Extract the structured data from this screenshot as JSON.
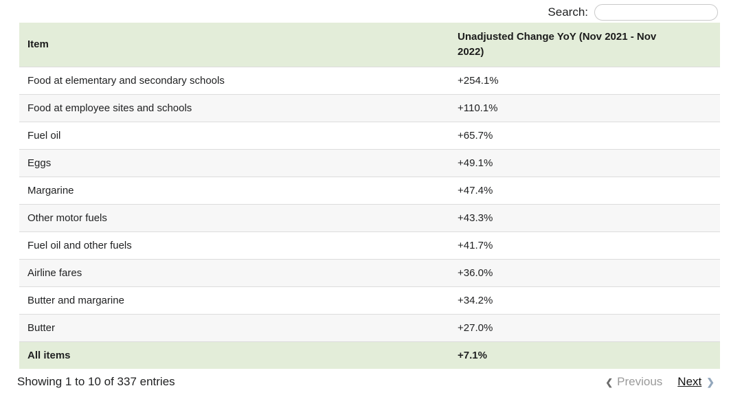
{
  "search": {
    "label": "Search:",
    "value": "",
    "placeholder": ""
  },
  "table": {
    "columns": [
      "Item",
      "Unadjusted Change YoY (Nov 2021 - Nov 2022)"
    ],
    "rows": [
      {
        "item": "Food at elementary and secondary schools",
        "change": "+254.1%"
      },
      {
        "item": "Food at employee sites and schools",
        "change": "+110.1%"
      },
      {
        "item": "Fuel oil",
        "change": "+65.7%"
      },
      {
        "item": "Eggs",
        "change": "+49.1%"
      },
      {
        "item": "Margarine",
        "change": "+47.4%"
      },
      {
        "item": "Other motor fuels",
        "change": "+43.3%"
      },
      {
        "item": "Fuel oil and other fuels",
        "change": "+41.7%"
      },
      {
        "item": "Airline fares",
        "change": "+36.0%"
      },
      {
        "item": "Butter and margarine",
        "change": "+34.2%"
      },
      {
        "item": "Butter",
        "change": "+27.0%"
      }
    ],
    "summary_row": {
      "item": "All items",
      "change": "+7.1%"
    }
  },
  "footer": {
    "info": "Showing 1 to 10 of 337 entries",
    "previous_label": "Previous",
    "next_label": "Next",
    "prev_icon_glyph": "❮",
    "next_icon_glyph": "❯"
  },
  "colors": {
    "header_bg": "#e3edd9",
    "stripe_bg": "#f7f7f7",
    "row_border": "#dcdcdc",
    "disabled_text": "#9a9a9a",
    "next_chevron": "#93a7bc",
    "prev_chevron": "#6c6c6c"
  }
}
